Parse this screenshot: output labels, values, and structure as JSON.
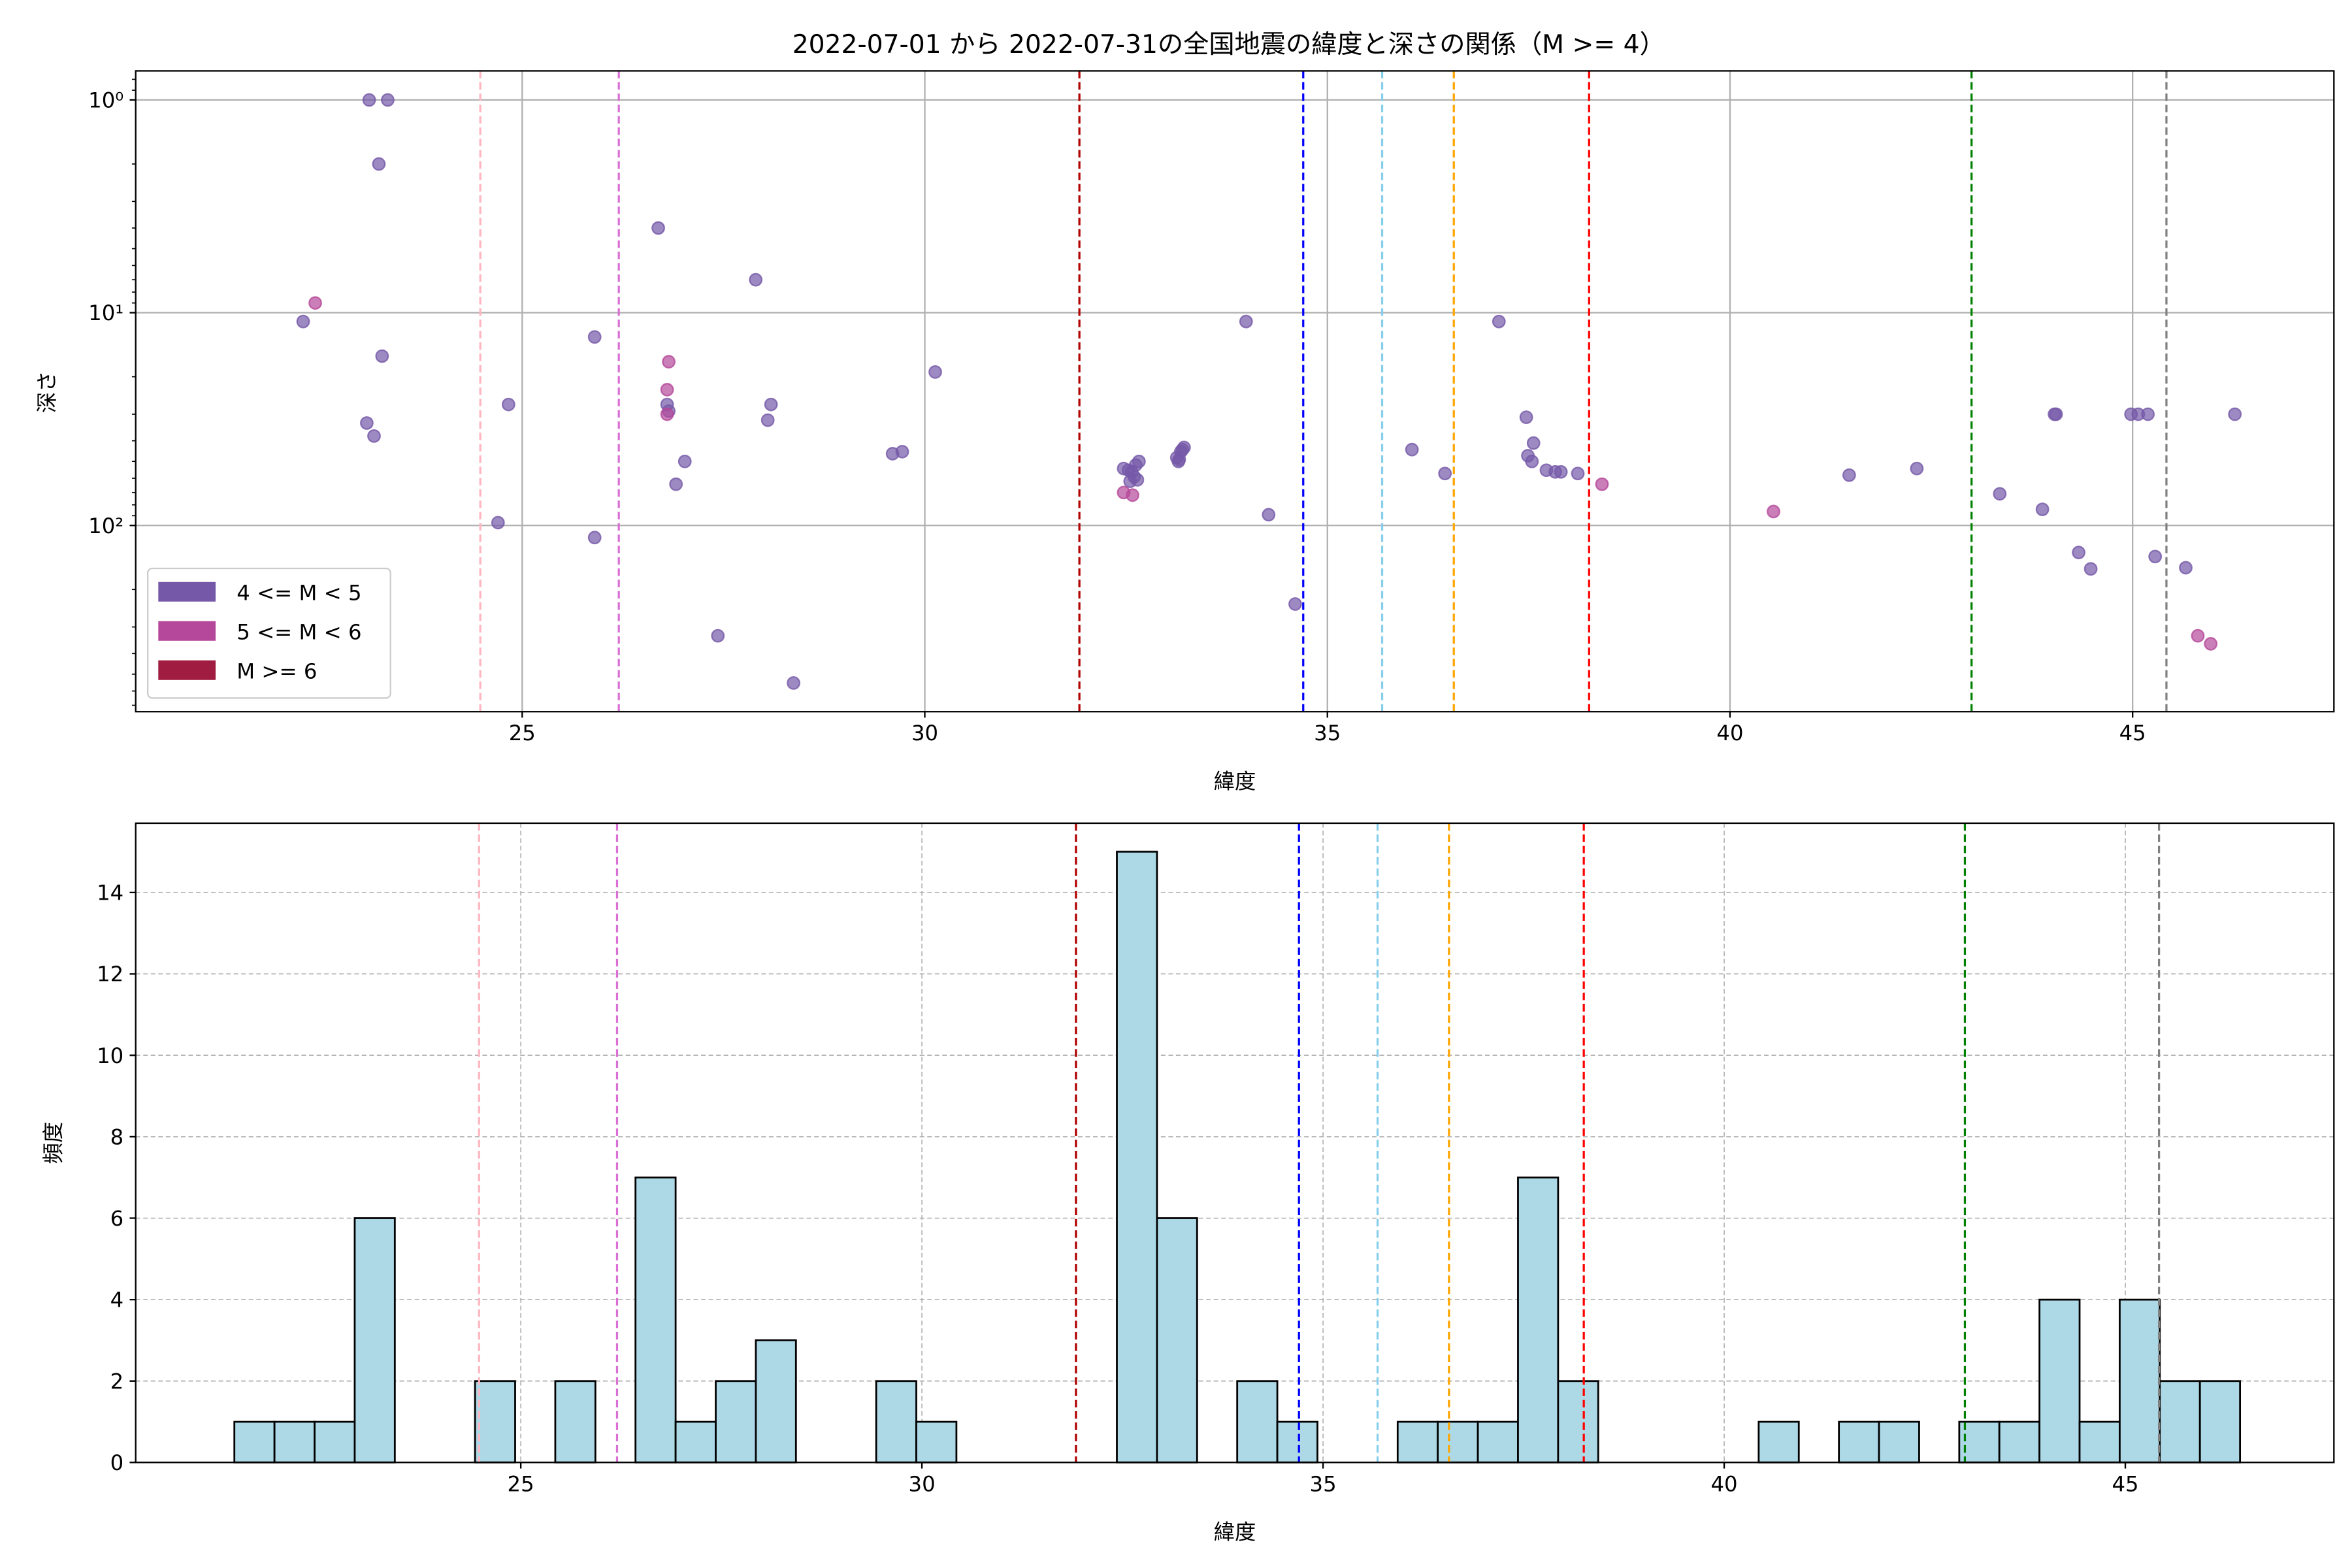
{
  "chart_data": [
    {
      "type": "scatter",
      "title": "2022-07-01 から 2022-07-31の全国地震の緯度と深さの関係（M >= 4）",
      "xlabel": "緯度",
      "ylabel": "深さ",
      "yscale": "log",
      "y_inverted": true,
      "xlim": [
        20.2,
        47.5
      ],
      "ylim": [
        750,
        0.73
      ],
      "xticks": [
        25,
        30,
        35,
        40,
        45
      ],
      "xtick_labels": [
        "25",
        "30",
        "35",
        "40",
        "45"
      ],
      "yticks": [
        1,
        10,
        100
      ],
      "ytick_labels": [
        "10⁰",
        "10¹",
        "10²"
      ],
      "grid": true,
      "legend_position": "lower-left",
      "legend": [
        {
          "label": "4 <= M < 5",
          "color": "#7559a8"
        },
        {
          "label": "5 <= M < 6",
          "color": "#b5489a"
        },
        {
          "label": "M >= 6",
          "color": "#a01c40"
        }
      ],
      "series": [
        {
          "name": "4 <= M < 5",
          "color": "#7559a8",
          "points": [
            [
              23.1,
              1
            ],
            [
              23.33,
              1
            ],
            [
              23.22,
              2
            ],
            [
              22.28,
              11
            ],
            [
              23.26,
              16
            ],
            [
              23.07,
              33
            ],
            [
              23.16,
              38
            ],
            [
              24.83,
              27
            ],
            [
              24.7,
              97
            ],
            [
              25.9,
              13
            ],
            [
              25.9,
              114
            ],
            [
              26.69,
              4
            ],
            [
              26.8,
              27
            ],
            [
              26.82,
              29
            ],
            [
              27.02,
              50
            ],
            [
              26.91,
              64
            ],
            [
              27.43,
              330
            ],
            [
              27.9,
              7
            ],
            [
              28.09,
              27
            ],
            [
              28.05,
              32
            ],
            [
              28.37,
              550
            ],
            [
              29.6,
              46
            ],
            [
              29.72,
              45
            ],
            [
              30.13,
              19
            ],
            [
              32.47,
              54
            ],
            [
              32.53,
              55
            ],
            [
              32.57,
              56
            ],
            [
              32.6,
              59
            ],
            [
              32.62,
              52
            ],
            [
              32.64,
              61
            ],
            [
              32.55,
              62
            ],
            [
              32.66,
              50
            ],
            [
              33.15,
              50
            ],
            [
              33.13,
              48
            ],
            [
              33.18,
              45
            ],
            [
              33.2,
              44
            ],
            [
              33.16,
              49
            ],
            [
              33.22,
              43
            ],
            [
              33.99,
              11
            ],
            [
              34.27,
              89
            ],
            [
              34.6,
              234
            ],
            [
              36.05,
              44
            ],
            [
              36.46,
              57
            ],
            [
              37.13,
              11
            ],
            [
              37.47,
              31
            ],
            [
              37.56,
              41
            ],
            [
              37.49,
              47
            ],
            [
              37.54,
              50
            ],
            [
              37.72,
              55
            ],
            [
              37.83,
              56
            ],
            [
              37.9,
              56
            ],
            [
              38.11,
              57
            ],
            [
              41.48,
              58
            ],
            [
              42.32,
              54
            ],
            [
              43.35,
              71
            ],
            [
              43.88,
              84
            ],
            [
              44.03,
              30
            ],
            [
              44.05,
              30
            ],
            [
              44.33,
              134
            ],
            [
              44.48,
              160
            ],
            [
              44.98,
              30
            ],
            [
              45.07,
              30
            ],
            [
              45.19,
              30
            ],
            [
              45.28,
              140
            ],
            [
              45.66,
              158
            ],
            [
              46.27,
              30
            ]
          ]
        },
        {
          "name": "5 <= M < 6",
          "color": "#b5489a",
          "points": [
            [
              22.43,
              9
            ],
            [
              26.82,
              17
            ],
            [
              26.8,
              23
            ],
            [
              26.8,
              30
            ],
            [
              32.47,
              70
            ],
            [
              32.58,
              72
            ],
            [
              38.41,
              64
            ],
            [
              40.54,
              86
            ],
            [
              45.81,
              330
            ],
            [
              45.97,
              360
            ]
          ]
        },
        {
          "name": "M >= 6",
          "color": "#a01c40",
          "points": []
        }
      ],
      "vlines": [
        {
          "x": 24.48,
          "color": "#ffb6c1"
        },
        {
          "x": 26.2,
          "color": "#da70d6"
        },
        {
          "x": 31.92,
          "color": "#b00000"
        },
        {
          "x": 34.7,
          "color": "#0000ff"
        },
        {
          "x": 35.68,
          "color": "#87ceeb"
        },
        {
          "x": 36.57,
          "color": "#ffa500"
        },
        {
          "x": 38.25,
          "color": "#ff0000"
        },
        {
          "x": 43.0,
          "color": "#008000"
        },
        {
          "x": 45.42,
          "color": "#808080"
        }
      ]
    },
    {
      "type": "bar",
      "subtype": "histogram",
      "xlabel": "緯度",
      "ylabel": "頻度",
      "xlim": [
        20.2,
        47.6
      ],
      "ylim": [
        0,
        15.7
      ],
      "xticks": [
        25,
        30,
        35,
        40,
        45
      ],
      "xtick_labels": [
        "25",
        "30",
        "35",
        "40",
        "45"
      ],
      "yticks": [
        0,
        2,
        4,
        6,
        8,
        10,
        12,
        14
      ],
      "ytick_labels": [
        "0",
        "2",
        "4",
        "6",
        "8",
        "10",
        "12",
        "14"
      ],
      "grid": true,
      "bar_color": "#add8e6",
      "bin_start": 21.43,
      "bin_width": 0.5,
      "counts": [
        1,
        1,
        1,
        6,
        0,
        0,
        2,
        0,
        2,
        0,
        7,
        1,
        2,
        3,
        0,
        0,
        2,
        1,
        0,
        0,
        0,
        0,
        15,
        6,
        0,
        2,
        1,
        0,
        0,
        1,
        1,
        1,
        7,
        2,
        0,
        0,
        0,
        0,
        1,
        0,
        1,
        1,
        0,
        1,
        1,
        4,
        1,
        4,
        2,
        2
      ],
      "vlines": [
        {
          "x": 24.48,
          "color": "#ffb6c1"
        },
        {
          "x": 26.2,
          "color": "#da70d6"
        },
        {
          "x": 31.92,
          "color": "#b00000"
        },
        {
          "x": 34.7,
          "color": "#0000ff"
        },
        {
          "x": 35.68,
          "color": "#87ceeb"
        },
        {
          "x": 36.57,
          "color": "#ffa500"
        },
        {
          "x": 38.25,
          "color": "#ff0000"
        },
        {
          "x": 43.0,
          "color": "#008000"
        },
        {
          "x": 45.42,
          "color": "#808080"
        }
      ]
    }
  ]
}
